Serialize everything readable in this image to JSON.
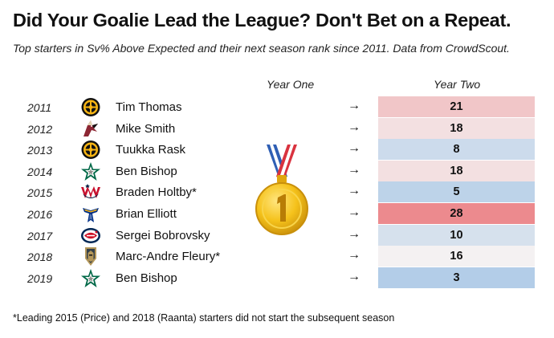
{
  "chart_data": {
    "type": "table",
    "title": "Did Your Goalie Lead the League? Don't Bet on a Repeat.",
    "subtitle": "Top starters in Sv% Above Expected and their next season rank since 2011. Data from CrowdScout.",
    "columns": {
      "year_one": "Year One",
      "year_two": "Year Two"
    },
    "arrow_symbol": "→",
    "rank_scale": {
      "min": 1,
      "mid": 16,
      "max": 28,
      "low_color": "#a9c8e6",
      "mid_color": "#f4f1f2",
      "high_color": "#ec8a8e"
    },
    "rows": [
      {
        "year": "2011",
        "goalie": "Tim Thomas",
        "team_logo": "bruins-logo-icon",
        "rank": 21
      },
      {
        "year": "2012",
        "goalie": "Mike Smith",
        "team_logo": "coyotes-logo-icon",
        "rank": 18
      },
      {
        "year": "2013",
        "goalie": "Tuukka Rask",
        "team_logo": "bruins-logo-icon",
        "rank": 8
      },
      {
        "year": "2014",
        "goalie": "Ben Bishop",
        "team_logo": "stars-logo-icon",
        "rank": 18
      },
      {
        "year": "2015",
        "goalie": "Braden Holtby*",
        "team_logo": "capitals-logo-icon",
        "rank": 5
      },
      {
        "year": "2016",
        "goalie": "Brian Elliott",
        "team_logo": "blues-logo-icon",
        "rank": 28
      },
      {
        "year": "2017",
        "goalie": "Sergei Bobrovsky",
        "team_logo": "blue-jackets-logo-icon",
        "rank": 10
      },
      {
        "year": "2018",
        "goalie": "Marc-Andre Fleury*",
        "team_logo": "golden-knights-logo-icon",
        "rank": 16
      },
      {
        "year": "2019",
        "goalie": "Ben Bishop",
        "team_logo": "stars-logo-icon",
        "rank": 3
      }
    ],
    "medal_icon": "first-place-medal-icon",
    "footnote": "*Leading 2015 (Price) and 2018 (Raanta) starters did not start the subsequent season"
  }
}
